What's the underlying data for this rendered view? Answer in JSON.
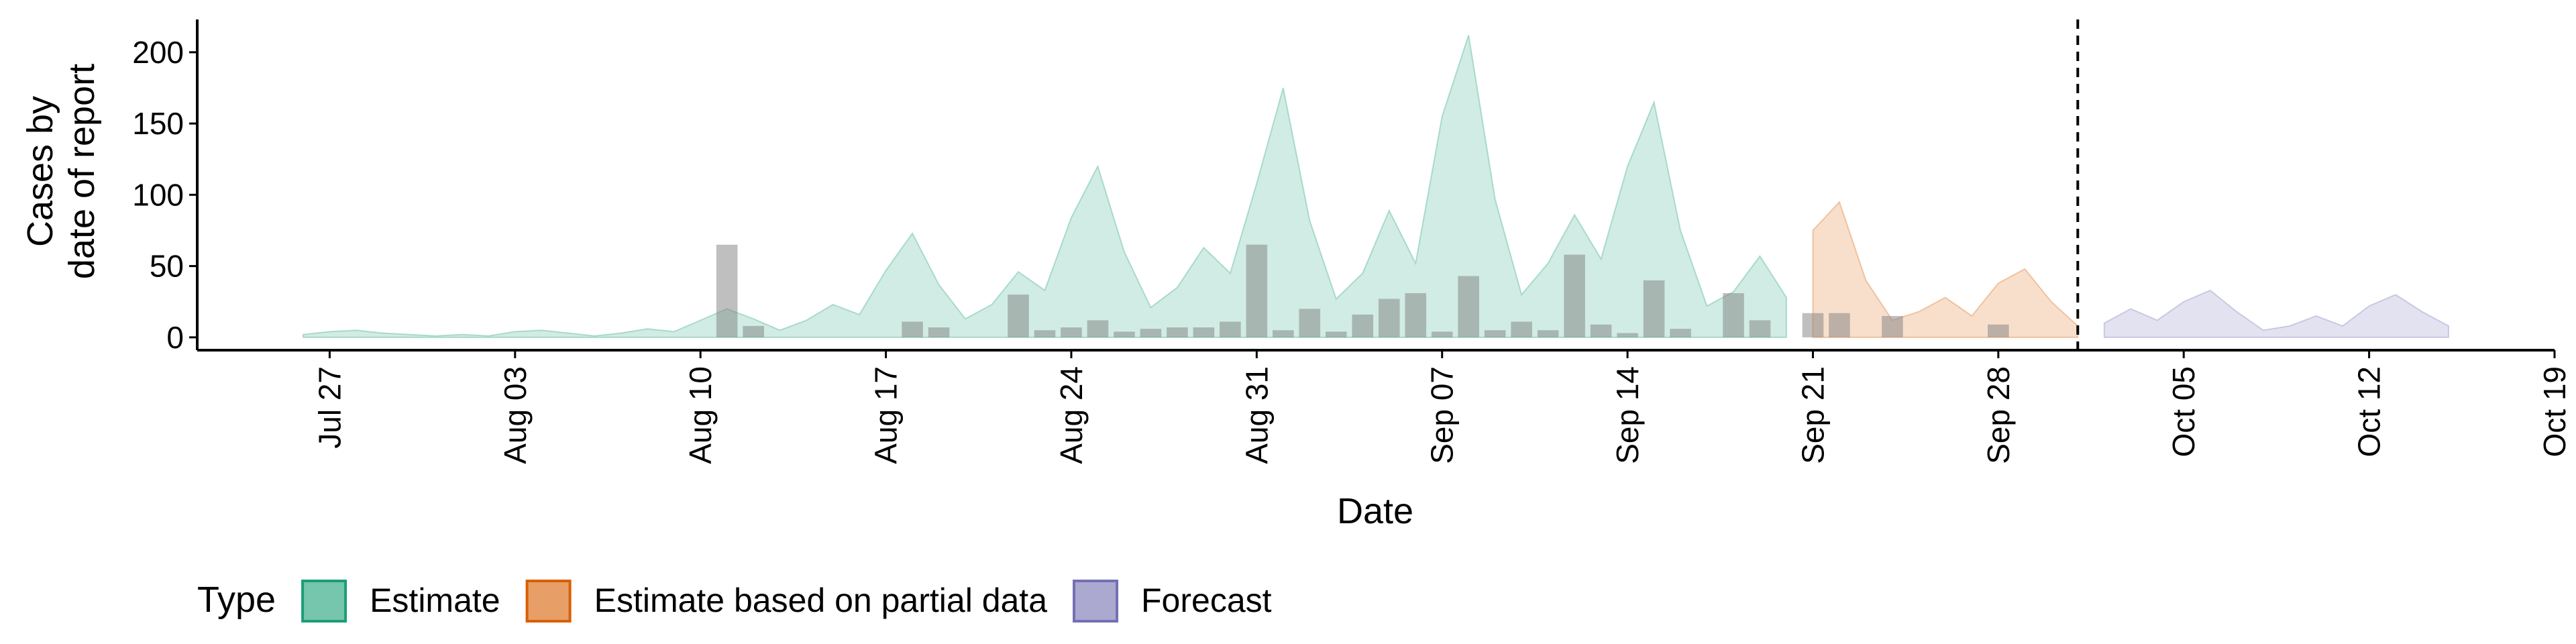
{
  "chart_data": {
    "type": "area",
    "y_label": "Cases by\ndate of report",
    "x_label": "Date",
    "legend_title": "Type",
    "xlim": [
      "Jul 22",
      "Oct 19"
    ],
    "xticks": [
      "Jul 27",
      "Aug 03",
      "Aug 10",
      "Aug 17",
      "Aug 24",
      "Aug 31",
      "Sep 07",
      "Sep 14",
      "Sep 21",
      "Sep 28",
      "Oct 05",
      "Oct 12",
      "Oct 19"
    ],
    "ylim": [
      -9,
      223
    ],
    "yticks": [
      0,
      50,
      100,
      150,
      200
    ],
    "vline": "Oct 01",
    "series": [
      {
        "name": "Estimate",
        "color": "#1b9e77",
        "start": "Jul 26",
        "values": [
          2,
          4,
          5,
          3,
          2,
          1,
          2,
          1,
          4,
          5,
          3,
          1,
          3,
          6,
          4,
          12,
          20,
          13,
          5,
          12,
          23,
          16,
          47,
          73,
          37,
          13,
          23,
          46,
          33,
          84,
          120,
          60,
          21,
          35,
          63,
          45,
          108,
          175,
          82,
          27,
          45,
          89,
          52,
          155,
          212,
          97,
          30,
          52,
          86,
          55,
          120,
          165,
          75,
          22,
          32,
          57,
          28
        ]
      },
      {
        "name": "Estimate based on partial data",
        "color": "#d95f02",
        "start": "Sep 21",
        "values": [
          75,
          95,
          40,
          12,
          18,
          28,
          15,
          38,
          48,
          25,
          8
        ]
      },
      {
        "name": "Forecast",
        "color": "#7570b3",
        "start": "Oct 02",
        "values": [
          10,
          20,
          12,
          25,
          33,
          18,
          5,
          8,
          15,
          8,
          22,
          30,
          18,
          8
        ]
      }
    ],
    "bars": {
      "color": "#808080",
      "x": [
        "Aug 11",
        "Aug 12",
        "Aug 18",
        "Aug 19",
        "Aug 22",
        "Aug 23",
        "Aug 24",
        "Aug 25",
        "Aug 26",
        "Aug 27",
        "Aug 28",
        "Aug 29",
        "Aug 30",
        "Aug 31",
        "Sep 01",
        "Sep 02",
        "Sep 03",
        "Sep 04",
        "Sep 05",
        "Sep 06",
        "Sep 07",
        "Sep 08",
        "Sep 09",
        "Sep 10",
        "Sep 11",
        "Sep 12",
        "Sep 13",
        "Sep 14",
        "Sep 15",
        "Sep 16",
        "Sep 18",
        "Sep 19",
        "Sep 21",
        "Sep 22",
        "Sep 24",
        "Sep 28"
      ],
      "values": [
        65,
        8,
        11,
        7,
        30,
        5,
        7,
        12,
        4,
        6,
        7,
        7,
        11,
        65,
        5,
        20,
        4,
        16,
        27,
        31,
        4,
        43,
        5,
        11,
        5,
        58,
        9,
        3,
        40,
        6,
        31,
        12,
        17,
        17,
        15,
        9
      ]
    }
  }
}
